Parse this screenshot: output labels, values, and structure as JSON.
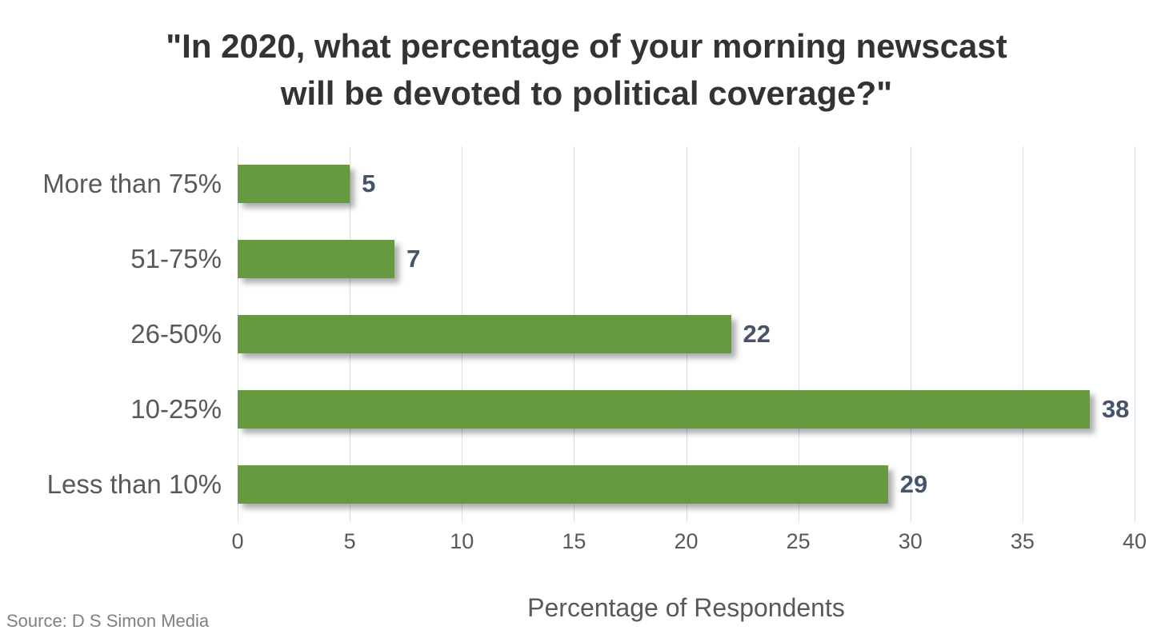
{
  "chart_data": {
    "type": "bar",
    "orientation": "horizontal",
    "title": "\"In 2020, what percentage of your morning newscast will be devoted to political coverage?\"",
    "title_lines": [
      "\"In 2020, what percentage of your morning newscast",
      "will be devoted to political coverage?\""
    ],
    "categories": [
      "More than 75%",
      "51-75%",
      "26-50%",
      "10-25%",
      "Less than 10%"
    ],
    "values": [
      5,
      7,
      22,
      38,
      29
    ],
    "xlabel": "Percentage of Respondents",
    "ylabel": "",
    "xlim": [
      0,
      40
    ],
    "xticks": [
      0,
      5,
      10,
      15,
      20,
      25,
      30,
      35,
      40
    ],
    "grid": true,
    "legend": false,
    "data_labels": true
  },
  "source_note": "Source: D S Simon Media",
  "colors": {
    "bar": "#669A40",
    "value_label": "#44546A",
    "axis_text": "#595959",
    "title_text": "#333333",
    "gridline": "#D6DEE9",
    "source_text": "#808080",
    "background": "#FFFFFF"
  }
}
